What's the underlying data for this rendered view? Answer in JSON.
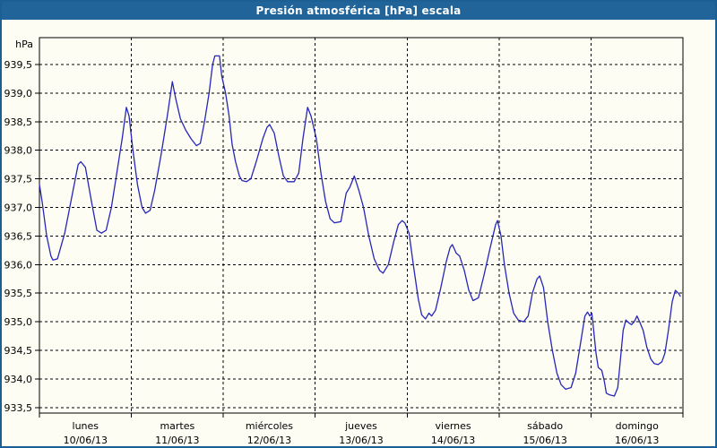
{
  "window": {
    "title": "Presión atmosférica [hPa] escala"
  },
  "colors": {
    "titlebar_bg": "#20649a",
    "window_border": "#1c5f93",
    "background": "#fdfdf3",
    "line_color": "#2626bb",
    "grid_color": "#000000",
    "text_color": "#000000",
    "title_text": "#ffffff"
  },
  "chart_data": {
    "type": "line",
    "title": "Presión atmosférica [hPa] escala",
    "unit_label": "hPa",
    "ylabel": "hPa",
    "xlabel": "",
    "ylim": [
      933.5,
      939.5
    ],
    "y_step": 0.5,
    "grid": "dashed",
    "legend_position": "none",
    "y_tick_labels": [
      "939,5",
      "939,0",
      "938,5",
      "938,0",
      "937,5",
      "937,0",
      "936,5",
      "936,0",
      "935,5",
      "935,0",
      "934,5",
      "934,0",
      "933,5"
    ],
    "y_tick_values": [
      939.5,
      939.0,
      938.5,
      938.0,
      937.5,
      937.0,
      936.5,
      936.0,
      935.5,
      935.0,
      934.5,
      934.0,
      933.5
    ],
    "x_range_hours": [
      0,
      168
    ],
    "x_days": [
      {
        "name": "lunes",
        "date": "10/06/13"
      },
      {
        "name": "martes",
        "date": "11/06/13"
      },
      {
        "name": "miércoles",
        "date": "12/06/13"
      },
      {
        "name": "jueves",
        "date": "13/06/13"
      },
      {
        "name": "viernes",
        "date": "14/06/13"
      },
      {
        "name": "sábado",
        "date": "15/06/13"
      },
      {
        "name": "domingo",
        "date": "16/06/13"
      }
    ],
    "series": [
      {
        "name": "Presión atmosférica [hPa]",
        "color": "#2626bb",
        "points_h_v": [
          [
            0,
            937.4
          ],
          [
            0.7,
            937.1
          ],
          [
            1.9,
            936.5
          ],
          [
            3,
            936.15
          ],
          [
            3.5,
            936.08
          ],
          [
            4.7,
            936.1
          ],
          [
            6.6,
            936.55
          ],
          [
            8.5,
            937.2
          ],
          [
            10.1,
            937.75
          ],
          [
            10.8,
            937.8
          ],
          [
            12,
            937.7
          ],
          [
            13.6,
            937.1
          ],
          [
            15,
            936.6
          ],
          [
            16.2,
            936.55
          ],
          [
            17.4,
            936.6
          ],
          [
            18.8,
            937
          ],
          [
            20.2,
            937.6
          ],
          [
            21.6,
            938.2
          ],
          [
            22.7,
            938.75
          ],
          [
            23.4,
            938.6
          ],
          [
            24.4,
            938
          ],
          [
            25.6,
            937.4
          ],
          [
            26.8,
            937
          ],
          [
            27.7,
            936.9
          ],
          [
            28.9,
            936.95
          ],
          [
            30.1,
            937.3
          ],
          [
            31.7,
            937.9
          ],
          [
            33.4,
            938.6
          ],
          [
            34.7,
            939.2
          ],
          [
            35.6,
            938.9
          ],
          [
            36.8,
            938.55
          ],
          [
            38.2,
            938.35
          ],
          [
            39.6,
            938.2
          ],
          [
            41,
            938.08
          ],
          [
            42,
            938.12
          ],
          [
            43.1,
            938.5
          ],
          [
            44.3,
            939
          ],
          [
            45.2,
            939.5
          ],
          [
            45.8,
            939.65
          ],
          [
            47,
            939.65
          ],
          [
            47.6,
            939.3
          ],
          [
            48.6,
            939
          ],
          [
            49.5,
            938.6
          ],
          [
            50.3,
            938.1
          ],
          [
            51.2,
            937.8
          ],
          [
            52.2,
            937.55
          ],
          [
            52.9,
            937.47
          ],
          [
            54,
            937.45
          ],
          [
            55.2,
            937.5
          ],
          [
            56.6,
            937.8
          ],
          [
            58.3,
            938.2
          ],
          [
            59.4,
            938.4
          ],
          [
            60.1,
            938.45
          ],
          [
            61.3,
            938.3
          ],
          [
            62.5,
            937.9
          ],
          [
            63.7,
            937.55
          ],
          [
            64.8,
            937.45
          ],
          [
            66.5,
            937.45
          ],
          [
            67.7,
            937.6
          ],
          [
            68.8,
            938.2
          ],
          [
            70,
            938.75
          ],
          [
            70.9,
            938.6
          ],
          [
            72.3,
            938.2
          ],
          [
            73.5,
            937.6
          ],
          [
            74.7,
            937.1
          ],
          [
            75.9,
            936.8
          ],
          [
            77,
            936.73
          ],
          [
            78.7,
            936.75
          ],
          [
            80.1,
            937.25
          ],
          [
            81,
            937.35
          ],
          [
            82.2,
            937.55
          ],
          [
            83.4,
            937.3
          ],
          [
            84.6,
            937
          ],
          [
            86,
            936.5
          ],
          [
            87.4,
            936.1
          ],
          [
            88.8,
            935.9
          ],
          [
            89.7,
            935.85
          ],
          [
            91.1,
            936
          ],
          [
            92.5,
            936.4
          ],
          [
            93.7,
            936.7
          ],
          [
            94.7,
            936.77
          ],
          [
            95.4,
            936.73
          ],
          [
            96.5,
            936.55
          ],
          [
            97.7,
            935.95
          ],
          [
            98.9,
            935.4
          ],
          [
            99.8,
            935.12
          ],
          [
            100.8,
            935.05
          ],
          [
            101.7,
            935.15
          ],
          [
            102.4,
            935.1
          ],
          [
            103.4,
            935.2
          ],
          [
            104.8,
            935.6
          ],
          [
            106.2,
            936.05
          ],
          [
            107.2,
            936.3
          ],
          [
            107.8,
            936.35
          ],
          [
            108.8,
            936.2
          ],
          [
            109.7,
            936.15
          ],
          [
            110.9,
            935.9
          ],
          [
            112.1,
            935.55
          ],
          [
            113.2,
            935.37
          ],
          [
            114.6,
            935.42
          ],
          [
            116,
            935.8
          ],
          [
            117.7,
            936.3
          ],
          [
            119.1,
            936.7
          ],
          [
            119.6,
            936.77
          ],
          [
            120.5,
            936.5
          ],
          [
            121.4,
            936
          ],
          [
            122.6,
            935.5
          ],
          [
            123.8,
            935.15
          ],
          [
            125,
            935.03
          ],
          [
            126.4,
            935
          ],
          [
            127.6,
            935.1
          ],
          [
            128.7,
            935.5
          ],
          [
            129.9,
            935.75
          ],
          [
            130.6,
            935.8
          ],
          [
            131.6,
            935.6
          ],
          [
            132.7,
            935
          ],
          [
            133.9,
            934.5
          ],
          [
            135.1,
            934.1
          ],
          [
            136.2,
            933.9
          ],
          [
            137.4,
            933.82
          ],
          [
            138.8,
            933.85
          ],
          [
            140,
            934.1
          ],
          [
            141.2,
            934.6
          ],
          [
            142.4,
            935.1
          ],
          [
            143.1,
            935.17
          ],
          [
            143.7,
            935.1
          ],
          [
            144.2,
            935.15
          ],
          [
            144.7,
            934.85
          ],
          [
            145.3,
            934.45
          ],
          [
            145.9,
            934.2
          ],
          [
            146.8,
            934.15
          ],
          [
            147.5,
            933.95
          ],
          [
            148,
            933.75
          ],
          [
            148.9,
            933.72
          ],
          [
            150.1,
            933.7
          ],
          [
            151,
            933.85
          ],
          [
            151.7,
            934.35
          ],
          [
            152.4,
            934.85
          ],
          [
            153.1,
            935.03
          ],
          [
            153.9,
            934.98
          ],
          [
            154.6,
            934.95
          ],
          [
            155.3,
            935
          ],
          [
            156,
            935.1
          ],
          [
            156.7,
            935
          ],
          [
            157.6,
            934.85
          ],
          [
            158.6,
            934.55
          ],
          [
            159.6,
            934.35
          ],
          [
            160.5,
            934.27
          ],
          [
            161.5,
            934.25
          ],
          [
            162.5,
            934.3
          ],
          [
            163.3,
            934.45
          ],
          [
            164.2,
            934.85
          ],
          [
            165.2,
            935.35
          ],
          [
            166,
            935.55
          ],
          [
            166.8,
            935.5
          ],
          [
            167.3,
            935.45
          ]
        ]
      }
    ]
  }
}
